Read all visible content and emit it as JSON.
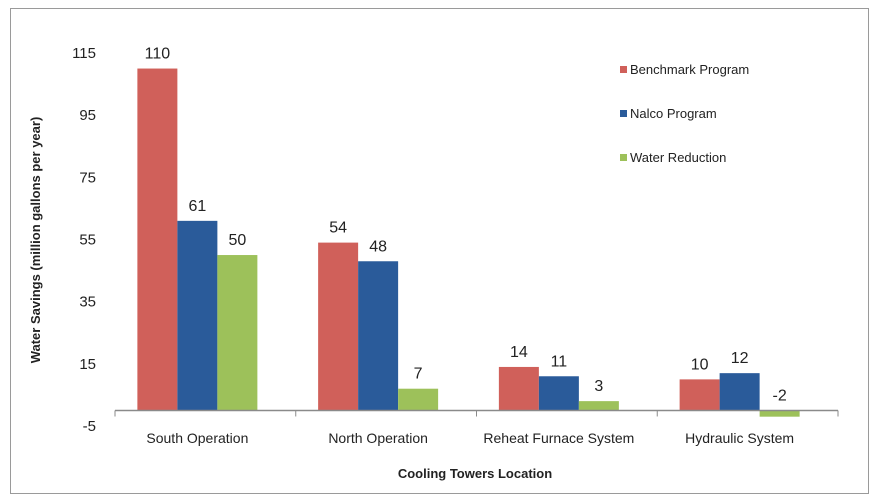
{
  "chart_data": {
    "type": "bar",
    "title": "",
    "xlabel": "Cooling Towers Location",
    "ylabel": "Water Savings (million gallons per year)",
    "categories": [
      "South Operation",
      "North Operation",
      "Reheat Furnace System",
      "Hydraulic System"
    ],
    "series": [
      {
        "name": "Benchmark Program",
        "color": "#d0605a",
        "values": [
          110,
          54,
          14,
          10
        ]
      },
      {
        "name": "Nalco Program",
        "color": "#2a5b9a",
        "values": [
          61,
          48,
          11,
          12
        ]
      },
      {
        "name": "Water Reduction",
        "color": "#9dc15a",
        "values": [
          50,
          7,
          3,
          -2
        ]
      }
    ],
    "ylim": [
      -5,
      115
    ],
    "yticks": [
      "115",
      "95",
      "75",
      "55",
      "35",
      "15",
      "-5"
    ],
    "grid": false,
    "legend_position": "top-right"
  }
}
